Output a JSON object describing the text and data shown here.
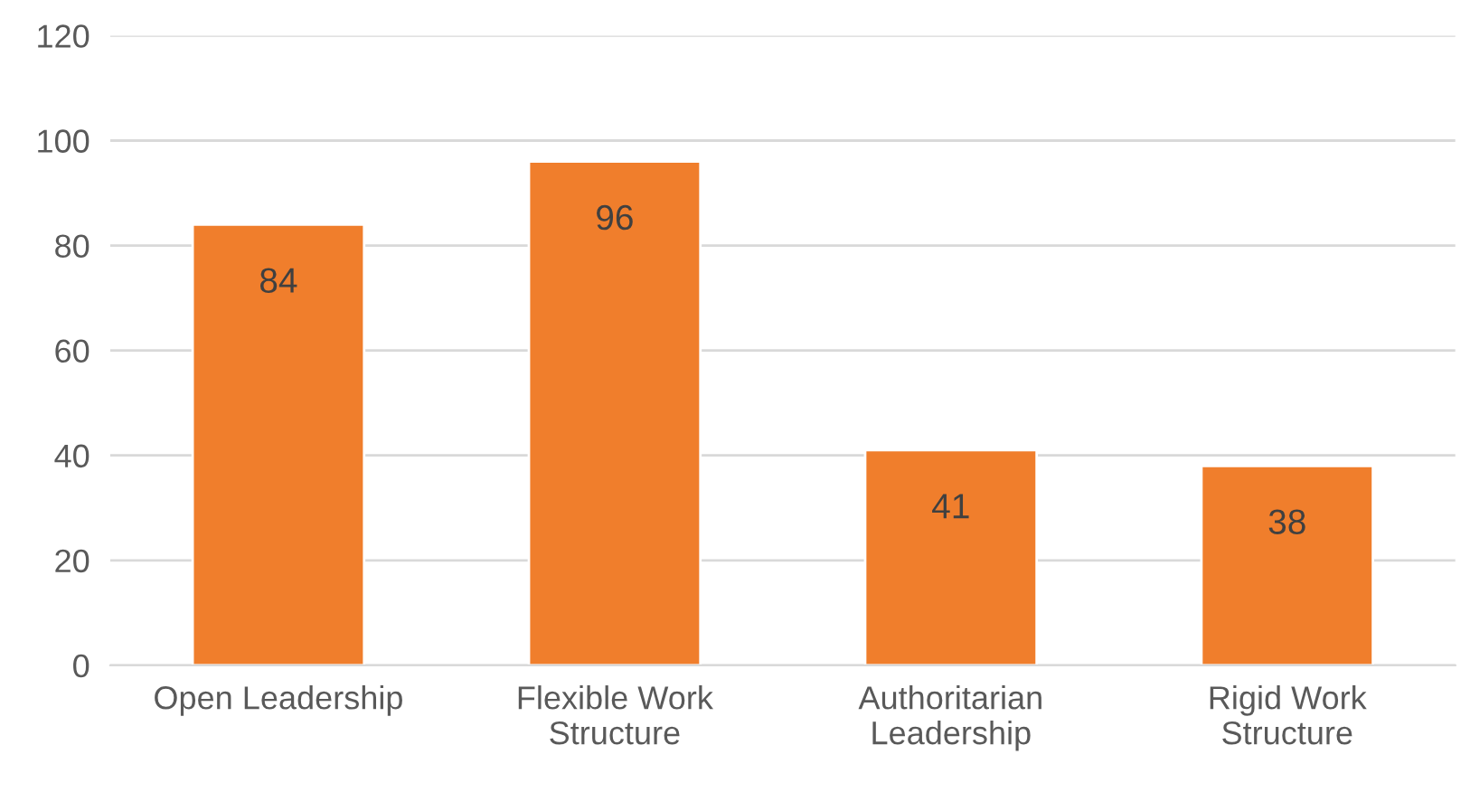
{
  "chart_data": {
    "type": "bar",
    "categories": [
      "Open Leadership",
      "Flexible Work Structure",
      "Authoritarian Leadership",
      "Rigid Work Structure"
    ],
    "values": [
      84,
      96,
      41,
      38
    ],
    "color": "#f07e2c",
    "ylim": [
      0,
      120
    ],
    "yticks": [
      0,
      20,
      40,
      60,
      80,
      100,
      120
    ],
    "grid": "y",
    "data_labels": true,
    "legend": false
  }
}
